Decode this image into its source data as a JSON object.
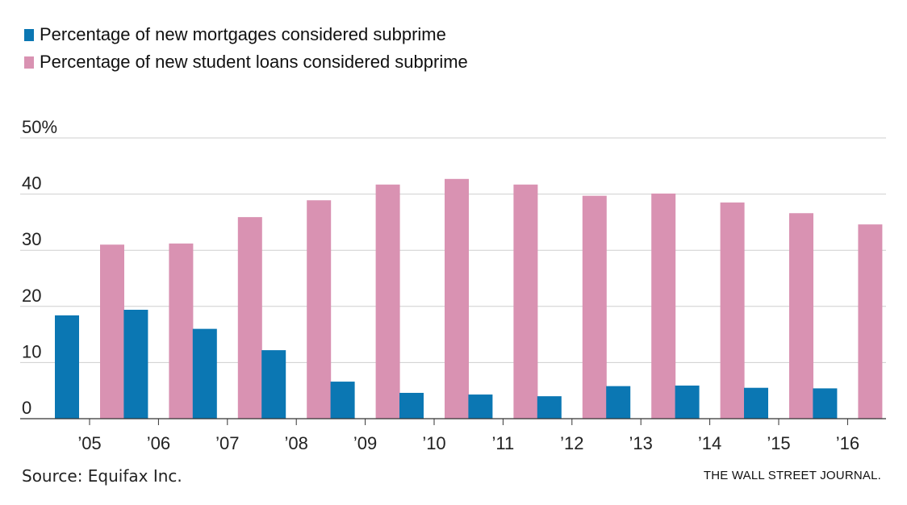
{
  "legend": [
    {
      "label": "Percentage of new mortgages considered subprime",
      "color": "#0b77b3"
    },
    {
      "label": "Percentage of new student loans considered subprime",
      "color": "#d992b2"
    }
  ],
  "chart_data": {
    "type": "bar",
    "categories": [
      "’05",
      "’06",
      "’07",
      "’08",
      "’09",
      "’10",
      "’11",
      "’12",
      "’13",
      "’14",
      "’15",
      "’16"
    ],
    "series": [
      {
        "name": "Percentage of new mortgages considered subprime",
        "color": "#0b77b3",
        "values": [
          18.4,
          19.4,
          16.0,
          12.2,
          6.6,
          4.6,
          4.3,
          4.0,
          5.8,
          5.9,
          5.5,
          5.4
        ]
      },
      {
        "name": "Percentage of new student loans considered subprime",
        "color": "#d992b2",
        "values": [
          31.0,
          31.2,
          35.9,
          38.9,
          41.7,
          42.7,
          41.7,
          39.7,
          40.1,
          38.5,
          36.6,
          34.6
        ]
      }
    ],
    "ylim": [
      0,
      50
    ],
    "yticks": [
      0,
      10,
      20,
      30,
      40,
      50
    ],
    "ytick_labels": [
      "0",
      "10",
      "20",
      "30",
      "40",
      "50%"
    ],
    "grid": true
  },
  "footer": {
    "source": "Source: Equifax Inc.",
    "credit": "THE WALL STREET JOURNAL."
  }
}
